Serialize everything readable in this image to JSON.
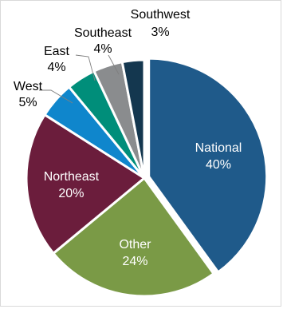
{
  "chart_data": {
    "type": "pie",
    "title": "",
    "start_angle_deg": 0,
    "direction": "clockwise",
    "slices": [
      {
        "label": "National",
        "value": 40,
        "display": "40%",
        "color": "#1f5a8a"
      },
      {
        "label": "Other",
        "value": 24,
        "display": "24%",
        "color": "#7a9a46"
      },
      {
        "label": "Northeast",
        "value": 20,
        "display": "20%",
        "color": "#6b1d3c"
      },
      {
        "label": "West",
        "value": 5,
        "display": "5%",
        "color": "#0f86cc"
      },
      {
        "label": "East",
        "value": 4,
        "display": "4%",
        "color": "#008e7a"
      },
      {
        "label": "Southeast",
        "value": 4,
        "display": "4%",
        "color": "#8a8c8e"
      },
      {
        "label": "Southwest",
        "value": 3,
        "display": "3%",
        "color": "#14374f"
      }
    ]
  }
}
